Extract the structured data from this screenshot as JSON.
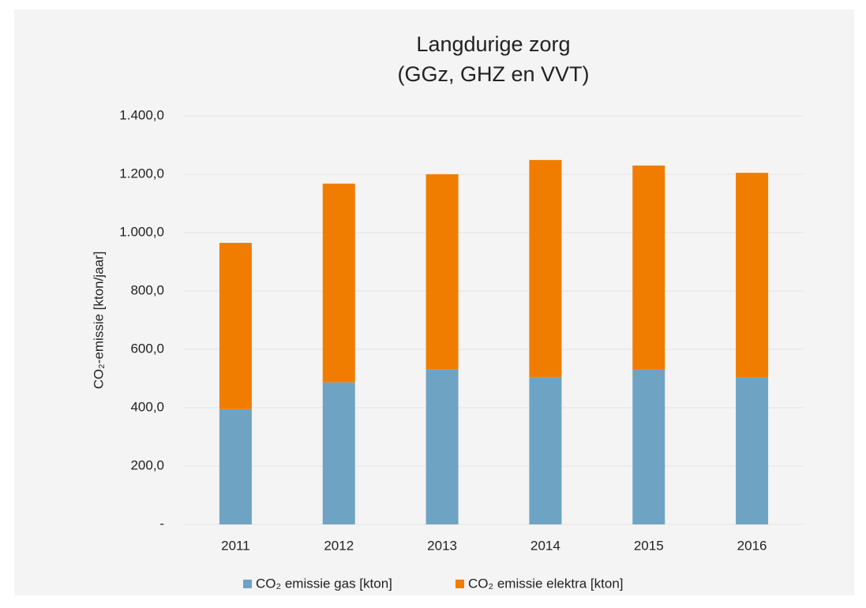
{
  "chart_data": {
    "type": "stacked_bar",
    "title": "Langdurige zorg",
    "subtitle": "(GGz, GHZ en VVT)",
    "y_label": "CO₂-emissie [kton/jaar]",
    "categories": [
      "2011",
      "2012",
      "2013",
      "2014",
      "2015",
      "2016"
    ],
    "series": [
      {
        "name": "CO₂ emissie gas [kton]",
        "color": "#6fa3c4",
        "values": [
          395,
          487,
          532,
          505,
          530,
          503
        ]
      },
      {
        "name": "CO₂ emissie elektra [kton]",
        "color": "#f07d00",
        "values": [
          570,
          681,
          668,
          744,
          700,
          702
        ]
      }
    ],
    "ylim": [
      0,
      1400
    ],
    "yticks": [
      {
        "value": 0,
        "label": "-"
      },
      {
        "value": 200,
        "label": "200,0"
      },
      {
        "value": 400,
        "label": "400,0"
      },
      {
        "value": 600,
        "label": "600,0"
      },
      {
        "value": 800,
        "label": "800,0"
      },
      {
        "value": 1000,
        "label": "1.000,0"
      },
      {
        "value": 1200,
        "label": "1.200,0"
      },
      {
        "value": 1400,
        "label": "1.400,0"
      }
    ],
    "grid": true,
    "legend": "bottom"
  }
}
